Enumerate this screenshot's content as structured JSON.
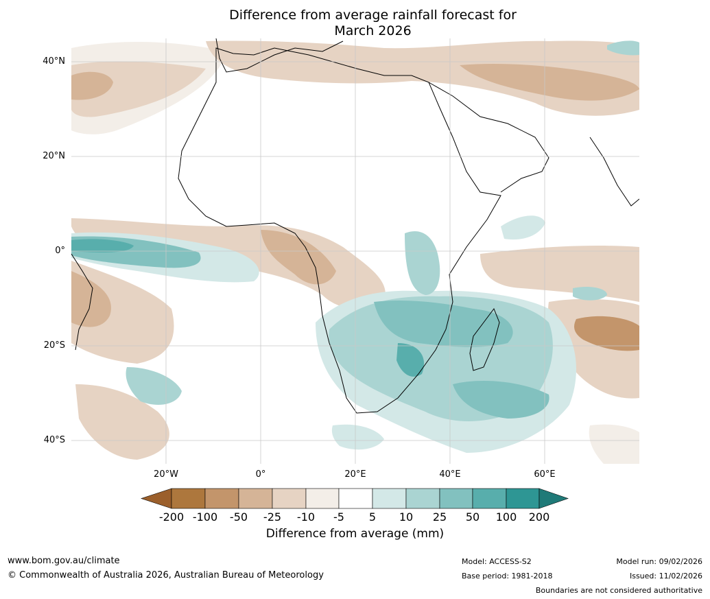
{
  "title_line1": "Difference from average rainfall forecast for",
  "title_line2": "March 2026",
  "map": {
    "lat_labels": [
      "40°N",
      "20°N",
      "0°",
      "20°S",
      "40°S"
    ],
    "lon_labels": [
      "20°W",
      "0°",
      "20°E",
      "40°E",
      "60°E"
    ],
    "region": "Africa and surrounding oceans"
  },
  "colorbar": {
    "ticks": [
      "-200",
      "-100",
      "-50",
      "-25",
      "-10",
      "-5",
      "5",
      "10",
      "25",
      "50",
      "100",
      "200"
    ],
    "colors": [
      "#9b5f2b",
      "#ad773d",
      "#c3956b",
      "#d5b497",
      "#e6d3c3",
      "#f3eee8",
      "#ffffff",
      "#d3e8e7",
      "#aad4d2",
      "#82c1bf",
      "#58aeac",
      "#2e9694",
      "#1f7a78"
    ],
    "label": "Difference from average (mm)"
  },
  "footer": {
    "website": "www.bom.gov.au/climate",
    "copyright": "© Commonwealth of Australia 2026, Australian Bureau of Meteorology",
    "model": "Model: ACCESS-S2",
    "base_period": "Base period: 1981-2018",
    "model_run": "Model run: 09/02/2026",
    "issued": "Issued: 11/02/2026",
    "disclaimer": "Boundaries are not considered authoritative"
  }
}
